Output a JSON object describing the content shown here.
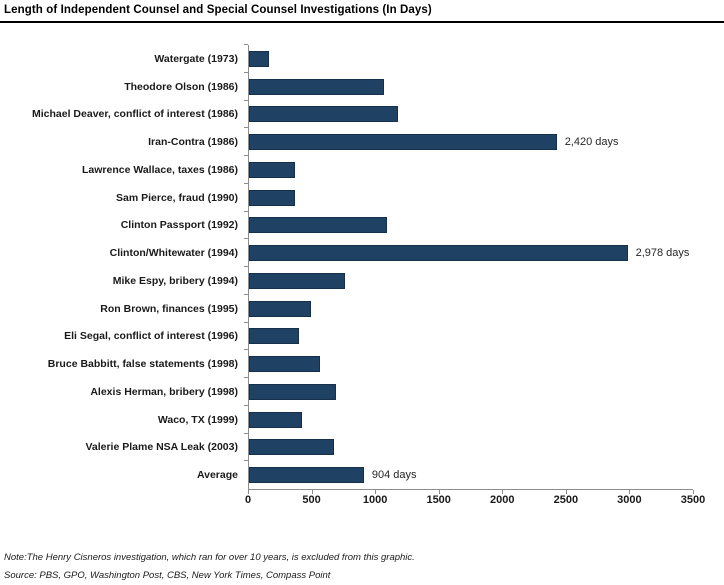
{
  "title": "Length of Independent Counsel and Special Counsel Investigations (In Days)",
  "note": "Note:The Henry Cisneros investigation, which ran for over 10 years, is excluded from this graphic.",
  "source": "Source: PBS, GPO, Washington Post, CBS, New York Times, Compass Point",
  "colors": {
    "bar_fill": "#1f4264",
    "bar_border": "#14304b",
    "axis": "#8c8c8c",
    "title_rule": "#000000"
  },
  "chart_data": {
    "type": "bar",
    "orientation": "horizontal",
    "title": "Length of Independent Counsel and Special Counsel Investigations (In Days)",
    "xlabel": "",
    "ylabel": "",
    "xlim": [
      0,
      3500
    ],
    "xticks": [
      0,
      500,
      1000,
      1500,
      2000,
      2500,
      3000,
      3500
    ],
    "grid": false,
    "legend": false,
    "categories": [
      "Watergate (1973)",
      "Theodore Olson (1986)",
      "Michael Deaver, conflict of interest (1986)",
      "Iran-Contra (1986)",
      "Lawrence Wallace, taxes (1986)",
      "Sam Pierce, fraud (1990)",
      "Clinton Passport (1992)",
      "Clinton/Whitewater (1994)",
      "Mike Espy, bribery (1994)",
      "Ron Brown, finances (1995)",
      "Eli Segal, conflict of interest (1996)",
      "Bruce Babbitt, false statements (1998)",
      "Alexis Herman, bribery (1998)",
      "Waco, TX (1999)",
      "Valerie Plame NSA Leak (2003)",
      "Average"
    ],
    "values": [
      160,
      1060,
      1170,
      2420,
      365,
      365,
      1085,
      2978,
      755,
      490,
      390,
      560,
      680,
      420,
      665,
      904
    ],
    "annotations": [
      "",
      "",
      "",
      "2,420 days",
      "",
      "",
      "",
      "2,978 days",
      "",
      "",
      "",
      "",
      "",
      "",
      "",
      "904 days"
    ]
  }
}
